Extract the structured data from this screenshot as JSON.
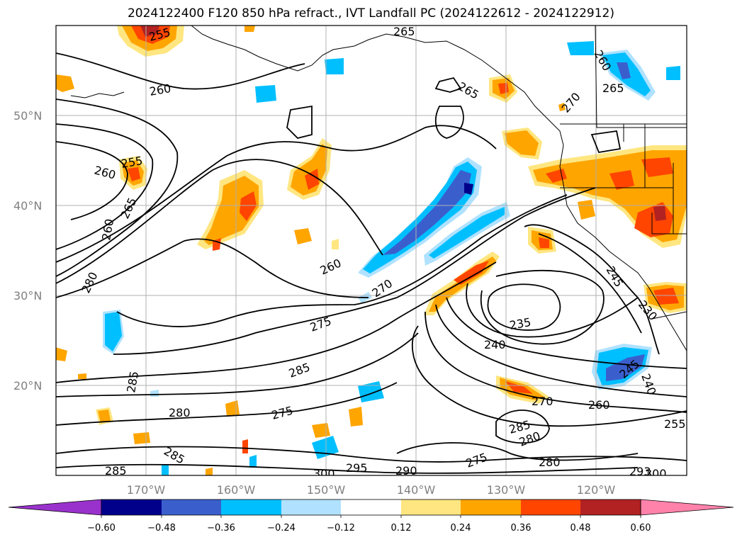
{
  "title": "2024122400 F120 850 hPa refract., IVT Landfall PC (2024122612 - 2024122912)",
  "map": {
    "lat_labels": [
      "50°N",
      "40°N",
      "30°N",
      "20°N"
    ],
    "lon_labels": [
      "170°W",
      "160°W",
      "150°W",
      "140°W",
      "130°W",
      "120°W"
    ],
    "contour_labels": [
      "255",
      "260",
      "265",
      "255",
      "260",
      "265",
      "260",
      "280",
      "260",
      "270",
      "275",
      "285",
      "285",
      "280",
      "275",
      "285",
      "285",
      "300",
      "295",
      "290",
      "275",
      "280",
      "293",
      "300",
      "235",
      "240",
      "270",
      "260",
      "285",
      "280",
      "255",
      "245",
      "240",
      "230",
      "245",
      "260",
      "265",
      "265",
      "270"
    ],
    "colors": {
      "blue_dark": "#00008b",
      "blue_mid": "#3a5fcd",
      "blue_light": "#00bfff",
      "blue_pale": "#b0e2ff",
      "yellow": "#ffe680",
      "orange": "#ffa500",
      "red_orange": "#ff4500",
      "red_dark": "#b22222"
    }
  },
  "colorbar": {
    "ticks": [
      "−0.60",
      "−0.48",
      "−0.36",
      "−0.24",
      "−0.12",
      "0.12",
      "0.24",
      "0.36",
      "0.48",
      "0.60"
    ],
    "colors": [
      "#9932cc",
      "#00008b",
      "#3a5fcd",
      "#4a6fdd",
      "#00bfff",
      "#b0e2ff",
      "#ffffff",
      "#ffe680",
      "#ffa500",
      "#ff4500",
      "#b22222",
      "#ff82ab"
    ]
  }
}
